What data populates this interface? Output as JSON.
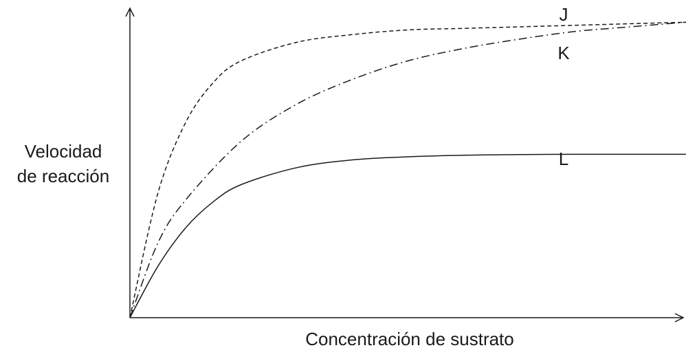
{
  "chart_data": {
    "type": "line",
    "title": "",
    "xlabel": "Concentración de sustrato",
    "ylabel_lines": [
      "Velocidad",
      "de reacción"
    ],
    "xlim": [
      0,
      1
    ],
    "ylim": [
      0,
      1
    ],
    "grid": false,
    "legend": "none",
    "series": [
      {
        "name": "J",
        "style": "dashed",
        "x": [
          0,
          0.05,
          0.1,
          0.15,
          0.2,
          0.3,
          0.4,
          0.5,
          0.6,
          0.7,
          0.8,
          0.9,
          1.0
        ],
        "y": [
          0,
          0.4,
          0.63,
          0.76,
          0.83,
          0.89,
          0.915,
          0.93,
          0.935,
          0.94,
          0.945,
          0.95,
          0.955
        ]
      },
      {
        "name": "K",
        "style": "dashdot",
        "x": [
          0,
          0.05,
          0.1,
          0.2,
          0.3,
          0.4,
          0.5,
          0.6,
          0.7,
          0.8,
          0.9,
          1.0
        ],
        "y": [
          0,
          0.24,
          0.38,
          0.57,
          0.69,
          0.77,
          0.83,
          0.87,
          0.9,
          0.925,
          0.94,
          0.955
        ]
      },
      {
        "name": "L",
        "style": "solid",
        "x": [
          0,
          0.05,
          0.1,
          0.15,
          0.2,
          0.3,
          0.4,
          0.5,
          0.6,
          0.7,
          0.8,
          0.9,
          1.0
        ],
        "y": [
          0,
          0.165,
          0.29,
          0.375,
          0.43,
          0.485,
          0.51,
          0.52,
          0.525,
          0.527,
          0.528,
          0.528,
          0.528
        ]
      }
    ]
  }
}
